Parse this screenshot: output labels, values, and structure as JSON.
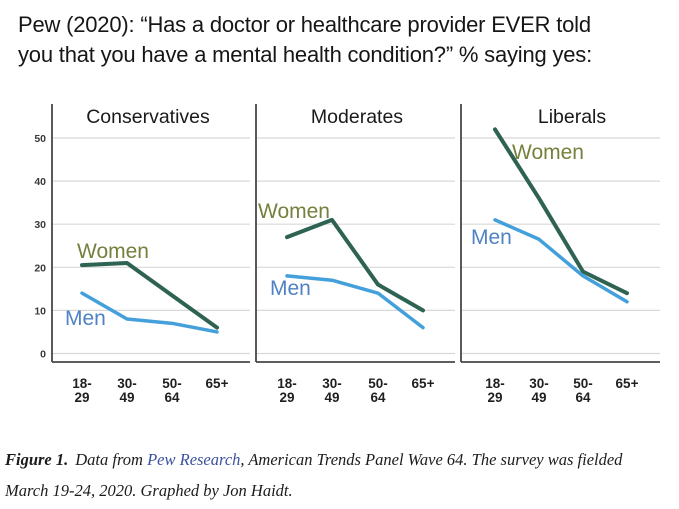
{
  "title": {
    "line1": "Pew (2020): “Has a doctor or healthcare provider EVER told",
    "line2": "you that you have a mental health condition?” % saying yes:"
  },
  "caption": {
    "figure_label": "Figure 1.",
    "pre_link": "Data from ",
    "link_text": "Pew Research",
    "post_link": ", American Trends Panel Wave 64. The survey was fielded",
    "line2": "March 19-24, 2020. Graphed by Jon Haidt."
  },
  "chart_data": {
    "type": "line",
    "categories": [
      "18-29",
      "30-49",
      "50-64",
      "65+"
    ],
    "x_tick_lines": [
      [
        "18-",
        "29"
      ],
      [
        "30-",
        "49"
      ],
      [
        "50-",
        "64"
      ],
      [
        "65+"
      ]
    ],
    "ylim": [
      0,
      55
    ],
    "yticks": [
      0,
      10,
      20,
      30,
      40,
      50
    ],
    "grid": true,
    "legend_position": "inline-labels",
    "series_colors": {
      "Women": "#2e6253",
      "Men": "#44a0da"
    },
    "label_colors": {
      "Women": "#75803c",
      "Men": "#4f82c3"
    },
    "colors": {
      "grid": "#d8d8d8",
      "axis": "#474747"
    },
    "panels": [
      {
        "title": "Conservatives",
        "series": [
          {
            "name": "Women",
            "values": [
              20.5,
              21,
              13.5,
              6
            ],
            "label_pos": [
              77,
              258
            ]
          },
          {
            "name": "Men",
            "values": [
              14,
              8,
              7,
              5
            ],
            "label_pos": [
              65,
              325
            ]
          }
        ]
      },
      {
        "title": "Moderates",
        "series": [
          {
            "name": "Women",
            "values": [
              27,
              31,
              16,
              10
            ],
            "label_pos": [
              258,
              218
            ]
          },
          {
            "name": "Men",
            "values": [
              18,
              17,
              14,
              6
            ],
            "label_pos": [
              270,
              295
            ]
          }
        ]
      },
      {
        "title": "Liberals",
        "series": [
          {
            "name": "Women",
            "values": [
              52,
              36,
              19,
              14
            ],
            "label_pos": [
              512,
              159
            ]
          },
          {
            "name": "Men",
            "values": [
              31,
              26.5,
              18,
              12
            ],
            "label_pos": [
              471,
              244
            ]
          }
        ]
      }
    ],
    "layout": {
      "y_zero": 353.5,
      "y_scale": 4.31,
      "plot_top": 104,
      "axis_bottom": 362,
      "panels_x": [
        {
          "axis": 52,
          "right": 250,
          "title_x": 148,
          "px": [
            82,
            127,
            172,
            217
          ]
        },
        {
          "axis": 256,
          "right": 455,
          "title_x": 357,
          "px": [
            287,
            332,
            378,
            423
          ]
        },
        {
          "axis": 461,
          "right": 660,
          "title_x": 572,
          "px": [
            495,
            539,
            583,
            627
          ]
        }
      ],
      "title_y": 123,
      "ytick_label_x": 46,
      "xlabel_y1": 388,
      "xlabel_y2": 402
    }
  }
}
